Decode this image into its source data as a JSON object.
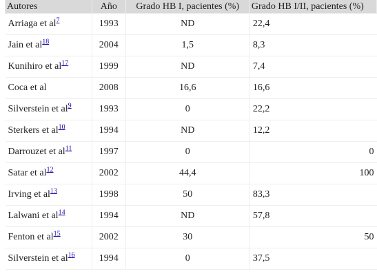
{
  "table": {
    "headers": [
      "Autores",
      "Año",
      "Grado HB I, pacientes (%)",
      "Grado HB I/II, pacientes (%)"
    ],
    "rows": [
      {
        "autor": "Arriaga et al",
        "ref": "7",
        "ano": "1993",
        "g1": "ND",
        "g2": "22,4",
        "g2_align": "left"
      },
      {
        "autor": "Jain et al",
        "ref": "18",
        "ano": "2004",
        "g1": "1,5",
        "g2": "8,3",
        "g2_align": "left"
      },
      {
        "autor": "Kunihiro et al",
        "ref": "17",
        "ano": "1999",
        "g1": "ND",
        "g2": "7,4",
        "g2_align": "left"
      },
      {
        "autor": "Coca et al",
        "ref": "",
        "ano": "2008",
        "g1": "16,6",
        "g2": "16,6",
        "g2_align": "left"
      },
      {
        "autor": "Silverstein et al",
        "ref": "9",
        "ano": "1993",
        "g1": "0",
        "g2": "22,2",
        "g2_align": "left"
      },
      {
        "autor": "Sterkers et al",
        "ref": "10",
        "ano": "1994",
        "g1": "ND",
        "g2": "12,2",
        "g2_align": "left"
      },
      {
        "autor": "Darrouzet et al",
        "ref": "11",
        "ano": "1997",
        "g1": "0",
        "g2": "0",
        "g2_align": "right"
      },
      {
        "autor": "Satar et al",
        "ref": "12",
        "ano": "2002",
        "g1": "44,4",
        "g2": "100",
        "g2_align": "right"
      },
      {
        "autor": "Irving et al",
        "ref": "13",
        "ano": "1998",
        "g1": "50",
        "g2": "83,3",
        "g2_align": "left"
      },
      {
        "autor": "Lalwani et al",
        "ref": "14",
        "ano": "1994",
        "g1": "ND",
        "g2": "57,8",
        "g2_align": "left"
      },
      {
        "autor": "Fenton et al",
        "ref": "15",
        "ano": "2002",
        "g1": "30",
        "g2": "50",
        "g2_align": "right"
      },
      {
        "autor": "Silverstein et al",
        "ref": "16",
        "ano": "1994",
        "g1": "0",
        "g2": "37,5",
        "g2_align": "left"
      }
    ]
  }
}
